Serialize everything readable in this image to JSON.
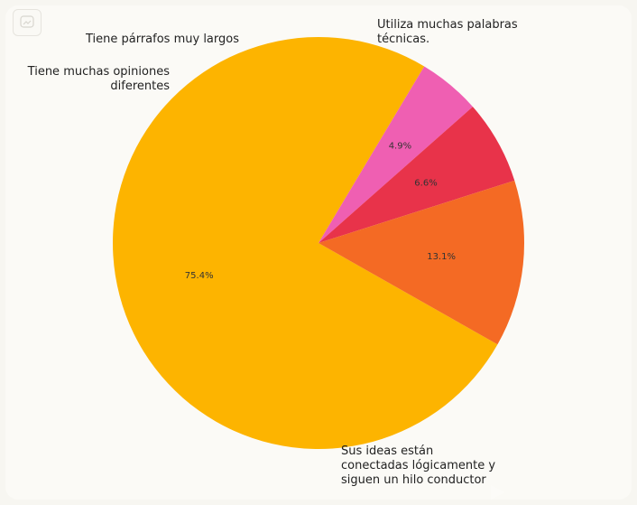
{
  "chart_data": {
    "type": "pie",
    "slices": [
      {
        "label": "Sus ideas están conectadas lógicamente y siguen un hilo conductor",
        "label_lines": [
          "Sus ideas están",
          "conectadas lógicamente y",
          "siguen un hilo conductor"
        ],
        "value": 75.4,
        "pct_text": "75.4%",
        "color": "#fdb400"
      },
      {
        "label": "Tiene muchas opiniones diferentes",
        "label_lines": [
          "Tiene muchas opiniones",
          "diferentes"
        ],
        "value": 4.9,
        "pct_text": "4.9%",
        "color": "#ef5fb2"
      },
      {
        "label": "Tiene párrafos muy largos",
        "label_lines": [
          "Tiene párrafos muy largos"
        ],
        "value": 6.6,
        "pct_text": "6.6%",
        "color": "#e8334a"
      },
      {
        "label": "Utiliza muchas palabras técnicas.",
        "label_lines": [
          "Utiliza muchas palabras",
          "técnicas."
        ],
        "value": 13.1,
        "pct_text": "13.1%",
        "color": "#f46a24"
      }
    ]
  },
  "icons": {
    "corner": "image-placeholder-icon",
    "watermark": "watermark-icon"
  }
}
